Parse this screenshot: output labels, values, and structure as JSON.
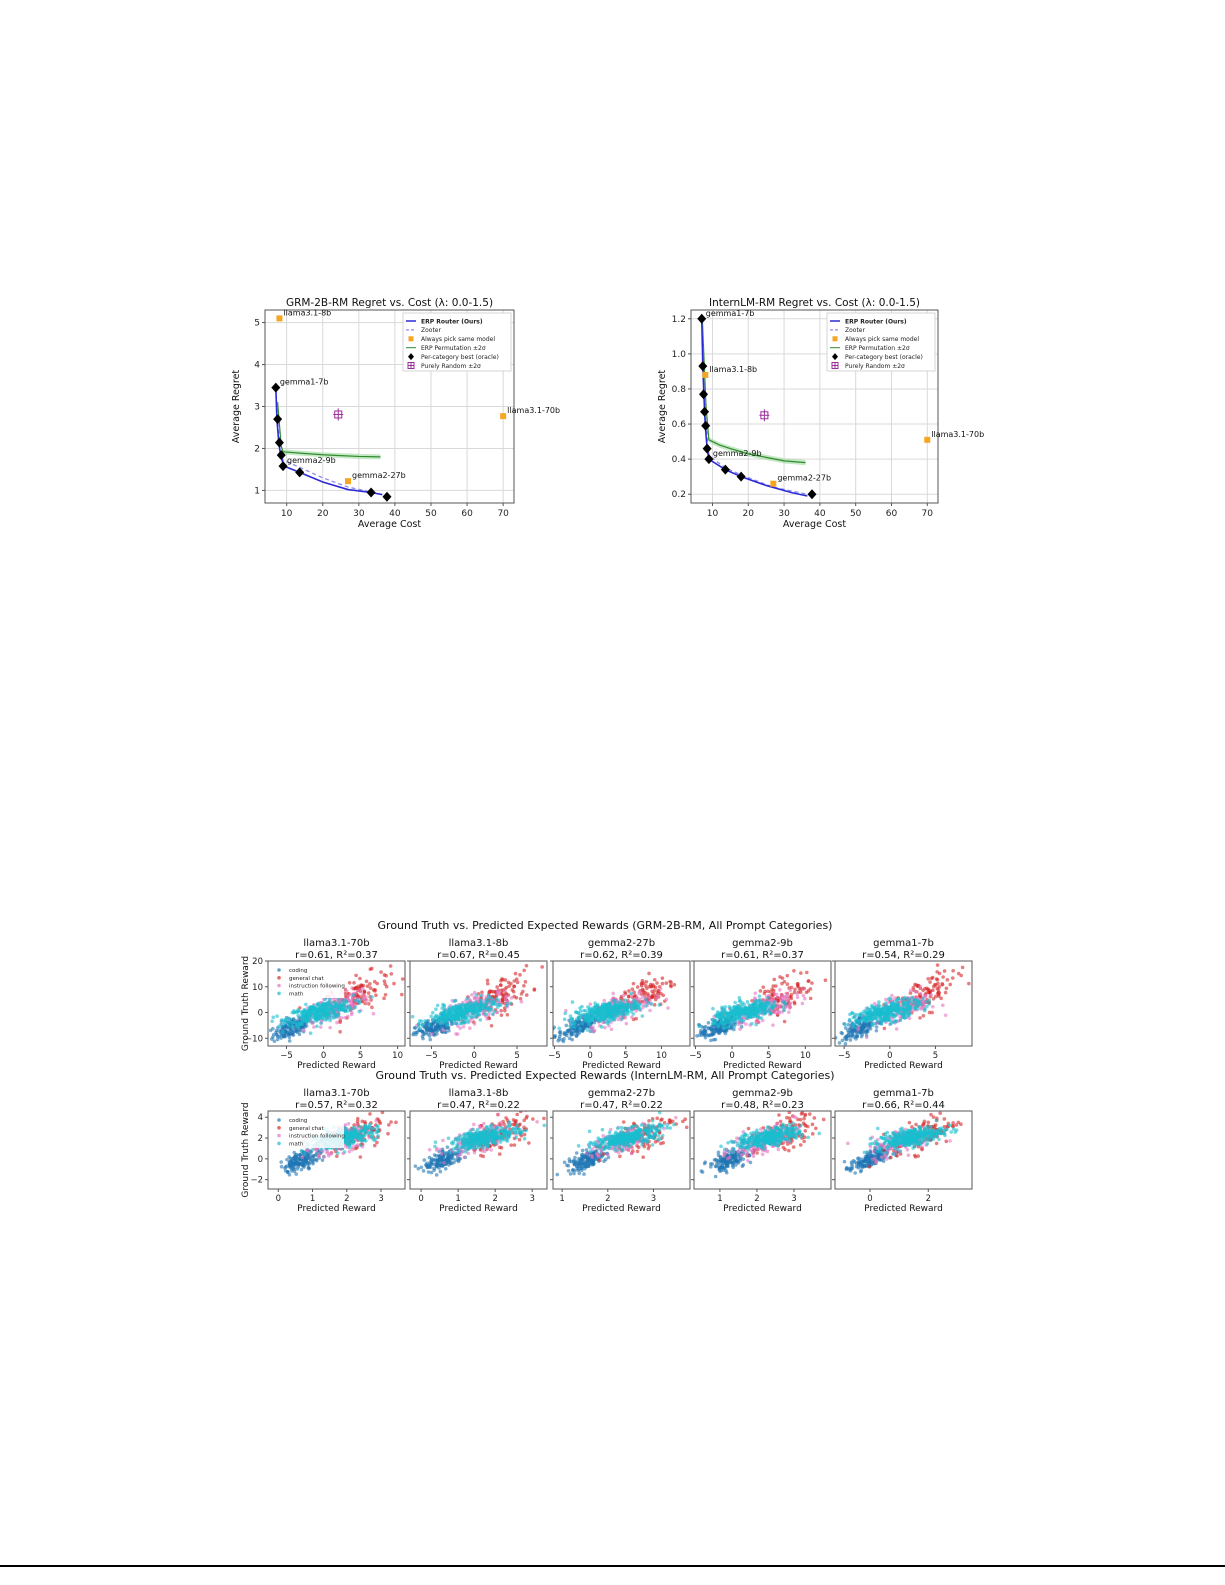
{
  "figure1": {
    "panels": [
      {
        "title": "GRM-2B-RM Regret vs. Cost (λ: 0.0-1.5)",
        "xlabel": "Average Cost",
        "ylabel": "Average Regret"
      },
      {
        "title": "InternLM-RM Regret vs. Cost (λ: 0.0-1.5)",
        "xlabel": "Average Cost",
        "ylabel": "Average Regret"
      }
    ],
    "legend": [
      "ERP Router (Ours)",
      "Zooter",
      "Always pick same model",
      "ERP Permutation ±2σ",
      "Per-category best (oracle)",
      "Purely Random ±2σ"
    ]
  },
  "figure2": {
    "rows": [
      {
        "title": "Ground Truth vs. Predicted Expected Rewards (GRM-2B-RM, All Prompt Categories)",
        "ylabel": "Ground Truth Reward",
        "xlabel": "Predicted Reward",
        "panels": [
          {
            "model": "llama3.1-70b",
            "stats": "r=0.61, R²=0.37"
          },
          {
            "model": "llama3.1-8b",
            "stats": "r=0.67, R²=0.45"
          },
          {
            "model": "gemma2-27b",
            "stats": "r=0.62, R²=0.39"
          },
          {
            "model": "gemma2-9b",
            "stats": "r=0.61, R²=0.37"
          },
          {
            "model": "gemma1-7b",
            "stats": "r=0.54, R²=0.29"
          }
        ]
      },
      {
        "title": "Ground Truth vs. Predicted Expected Rewards (InternLM-RM, All Prompt Categories)",
        "ylabel": "Ground Truth Reward",
        "xlabel": "Predicted Reward",
        "panels": [
          {
            "model": "llama3.1-70b",
            "stats": "r=0.57, R²=0.32"
          },
          {
            "model": "llama3.1-8b",
            "stats": "r=0.47, R²=0.22"
          },
          {
            "model": "gemma2-27b",
            "stats": "r=0.47, R²=0.22"
          },
          {
            "model": "gemma2-9b",
            "stats": "r=0.48, R²=0.23"
          },
          {
            "model": "gemma1-7b",
            "stats": "r=0.66, R²=0.44"
          }
        ]
      }
    ],
    "legend": [
      "coding",
      "general chat",
      "instruction following",
      "math"
    ],
    "colors": {
      "coding": "#1f77b4",
      "general chat": "#d62728",
      "instruction following": "#e377c2",
      "math": "#17becf"
    }
  },
  "chart_data": [
    {
      "type": "line",
      "title": "GRM-2B-RM Regret vs. Cost (λ: 0.0-1.5)",
      "xlabel": "Average Cost",
      "ylabel": "Average Regret",
      "xlim": [
        4,
        73
      ],
      "ylim": [
        0.7,
        5.3
      ],
      "xticks": [
        10,
        20,
        30,
        40,
        50,
        60,
        70
      ],
      "yticks": [
        1,
        2,
        3,
        4,
        5
      ],
      "grid": true,
      "legend_position": "upper right",
      "series": [
        {
          "name": "ERP Router (Ours)",
          "style": "solid line",
          "color": "#2b2bd6",
          "x": [
            7.0,
            7.3,
            7.8,
            8.3,
            8.8,
            9.3,
            11,
            13.6,
            20,
            27,
            33.4,
            36.5
          ],
          "y": [
            3.45,
            2.7,
            2.15,
            1.85,
            1.7,
            1.58,
            1.52,
            1.43,
            1.2,
            1.02,
            0.95,
            0.9
          ]
        },
        {
          "name": "Zooter",
          "style": "dashed line",
          "color": "#8a8af0",
          "x": [
            7.0,
            7.5,
            8.2,
            9.0,
            13.6,
            20,
            27,
            33.4,
            36.5
          ],
          "y": [
            3.45,
            2.7,
            2.0,
            1.72,
            1.55,
            1.3,
            1.08,
            0.96,
            0.9
          ]
        },
        {
          "name": "Always pick same model",
          "style": "square markers",
          "color": "#f5a623",
          "points": [
            {
              "label": "llama3.1-8b",
              "x": 8.0,
              "y": 5.1
            },
            {
              "label": "gemma2-27b",
              "x": 27.0,
              "y": 1.22
            },
            {
              "label": "llama3.1-70b",
              "x": 70.0,
              "y": 2.77
            }
          ]
        },
        {
          "name": "ERP Permutation ±2σ",
          "style": "line with band",
          "color": "#2e8b2e",
          "x": [
            7.5,
            8.5,
            9,
            15,
            20,
            25,
            30,
            36
          ],
          "y": [
            3.1,
            2.05,
            1.92,
            1.88,
            1.85,
            1.83,
            1.81,
            1.8
          ],
          "band": 0.06
        },
        {
          "name": "Per-category best (oracle)",
          "style": "diamond markers",
          "color": "#000000",
          "points": [
            {
              "label": "gemma1-7b",
              "x": 7.0,
              "y": 3.45
            },
            {
              "x": 7.5,
              "y": 2.7
            },
            {
              "x": 8.0,
              "y": 2.14
            },
            {
              "x": 8.5,
              "y": 1.84
            },
            {
              "label": "gemma2-9b",
              "x": 9.0,
              "y": 1.58
            },
            {
              "x": 13.6,
              "y": 1.43
            },
            {
              "x": 33.4,
              "y": 0.95
            },
            {
              "x": 37.8,
              "y": 0.85
            }
          ]
        },
        {
          "name": "Purely Random ±2σ",
          "style": "errorbar",
          "color": "#9b2d9b",
          "points": [
            {
              "x": 24.3,
              "y": 2.81,
              "xerr": 0.8,
              "yerr": 0.08
            }
          ]
        }
      ]
    },
    {
      "type": "line",
      "title": "InternLM-RM Regret vs. Cost (λ: 0.0-1.5)",
      "xlabel": "Average Cost",
      "ylabel": "Average Regret",
      "xlim": [
        4,
        73
      ],
      "ylim": [
        0.15,
        1.25
      ],
      "xticks": [
        10,
        20,
        30,
        40,
        50,
        60,
        70
      ],
      "yticks": [
        0.2,
        0.4,
        0.6,
        0.8,
        1.0,
        1.2
      ],
      "grid": true,
      "legend_position": "upper right",
      "series": [
        {
          "name": "ERP Router (Ours)",
          "style": "solid line",
          "color": "#2b2bd6",
          "x": [
            7.0,
            7.3,
            7.6,
            7.8,
            8.0,
            8.5,
            9.0,
            13.6,
            18,
            25,
            32,
            36.5
          ],
          "y": [
            1.2,
            0.93,
            0.77,
            0.67,
            0.59,
            0.46,
            0.4,
            0.34,
            0.3,
            0.25,
            0.21,
            0.19
          ]
        },
        {
          "name": "Zooter",
          "style": "dashed line",
          "color": "#8a8af0",
          "x": [
            7.0,
            7.5,
            8.0,
            9.0,
            13.6,
            18,
            27,
            36.5
          ],
          "y": [
            1.2,
            0.9,
            0.65,
            0.42,
            0.35,
            0.31,
            0.24,
            0.2
          ]
        },
        {
          "name": "Always pick same model",
          "style": "square markers",
          "color": "#f5a623",
          "points": [
            {
              "label": "llama3.1-8b",
              "x": 8.0,
              "y": 0.88
            },
            {
              "label": "gemma2-27b",
              "x": 27.0,
              "y": 0.26
            },
            {
              "label": "llama3.1-70b",
              "x": 70.0,
              "y": 0.51
            }
          ]
        },
        {
          "name": "ERP Permutation ±2σ",
          "style": "line with band",
          "color": "#2e8b2e",
          "x": [
            7.2,
            8.2,
            9,
            12,
            15,
            20,
            25,
            30,
            36
          ],
          "y": [
            1.18,
            0.7,
            0.51,
            0.48,
            0.46,
            0.43,
            0.41,
            0.39,
            0.38
          ],
          "band": 0.015
        },
        {
          "name": "Per-category best (oracle)",
          "style": "diamond markers",
          "color": "#000000",
          "points": [
            {
              "label": "gemma1-7b",
              "x": 7.0,
              "y": 1.2
            },
            {
              "x": 7.3,
              "y": 0.93
            },
            {
              "x": 7.5,
              "y": 0.77
            },
            {
              "x": 7.8,
              "y": 0.67
            },
            {
              "x": 8.1,
              "y": 0.59
            },
            {
              "x": 8.5,
              "y": 0.46
            },
            {
              "label": "gemma2-9b",
              "x": 9.0,
              "y": 0.4
            },
            {
              "x": 13.6,
              "y": 0.34
            },
            {
              "x": 18.0,
              "y": 0.3
            },
            {
              "x": 37.8,
              "y": 0.2
            }
          ]
        },
        {
          "name": "Purely Random ±2σ",
          "style": "errorbar",
          "color": "#9b2d9b",
          "points": [
            {
              "x": 24.5,
              "y": 0.65,
              "xerr": 0.8,
              "yerr": 0.025
            }
          ]
        }
      ]
    },
    {
      "type": "scatter",
      "title": "Ground Truth vs. Predicted Expected Rewards (GRM-2B-RM, All Prompt Categories)",
      "xlabel": "Predicted Reward",
      "ylabel": "Ground Truth Reward",
      "legend": [
        "coding",
        "general chat",
        "instruction following",
        "math"
      ],
      "panels": [
        {
          "title": "llama3.1-70b",
          "r": 0.61,
          "r2": 0.37,
          "xticks": [
            -5,
            0,
            5,
            10
          ],
          "yticks": [
            -10,
            0,
            10,
            20
          ],
          "xlim": [
            -7.5,
            11
          ],
          "ylim": [
            -13,
            20
          ]
        },
        {
          "title": "llama3.1-8b",
          "r": 0.67,
          "r2": 0.45,
          "xticks": [
            -5,
            0,
            5
          ],
          "xlim": [
            -7.5,
            8.5
          ],
          "ylim": [
            -13,
            20
          ]
        },
        {
          "title": "gemma2-27b",
          "r": 0.62,
          "r2": 0.39,
          "xticks": [
            -5,
            0,
            5,
            10
          ],
          "xlim": [
            -5.2,
            14
          ],
          "ylim": [
            -13,
            20
          ]
        },
        {
          "title": "gemma2-9b",
          "r": 0.61,
          "r2": 0.37,
          "xticks": [
            -5,
            0,
            5,
            10
          ],
          "xlim": [
            -5.2,
            13.5
          ],
          "ylim": [
            -13,
            20
          ]
        },
        {
          "title": "gemma1-7b",
          "r": 0.54,
          "r2": 0.29,
          "xticks": [
            -5,
            0,
            5
          ],
          "xlim": [
            -6,
            9
          ],
          "ylim": [
            -13,
            20
          ]
        }
      ]
    },
    {
      "type": "scatter",
      "title": "Ground Truth vs. Predicted Expected Rewards (InternLM-RM, All Prompt Categories)",
      "xlabel": "Predicted Reward",
      "ylabel": "Ground Truth Reward",
      "legend": [
        "coding",
        "general chat",
        "instruction following",
        "math"
      ],
      "panels": [
        {
          "title": "llama3.1-70b",
          "r": 0.57,
          "r2": 0.32,
          "xticks": [
            0,
            1,
            2,
            3
          ],
          "yticks": [
            -2,
            0,
            2,
            4
          ],
          "xlim": [
            -0.3,
            3.7
          ],
          "ylim": [
            -2.9,
            4.6
          ]
        },
        {
          "title": "llama3.1-8b",
          "r": 0.47,
          "r2": 0.22,
          "xticks": [
            0,
            1,
            2,
            3
          ],
          "xlim": [
            -0.3,
            3.4
          ],
          "ylim": [
            -2.9,
            4.6
          ]
        },
        {
          "title": "gemma2-27b",
          "r": 0.47,
          "r2": 0.22,
          "xticks": [
            1,
            2,
            3
          ],
          "xlim": [
            0.8,
            3.8
          ],
          "ylim": [
            -2.9,
            4.6
          ]
        },
        {
          "title": "gemma2-9b",
          "r": 0.48,
          "r2": 0.23,
          "xticks": [
            1,
            2,
            3
          ],
          "xlim": [
            0.3,
            4
          ],
          "ylim": [
            -2.9,
            4.6
          ]
        },
        {
          "title": "gemma1-7b",
          "r": 0.66,
          "r2": 0.44,
          "xticks": [
            0,
            2
          ],
          "xlim": [
            -1.2,
            3.5
          ],
          "ylim": [
            -2.9,
            4.6
          ]
        }
      ]
    }
  ]
}
